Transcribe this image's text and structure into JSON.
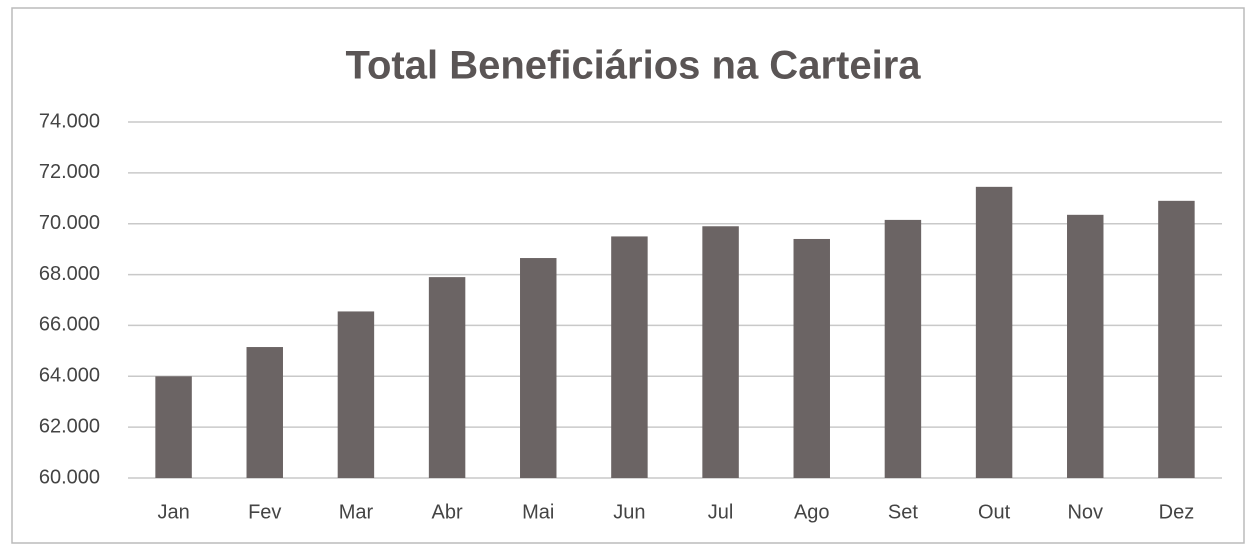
{
  "chart_data": {
    "type": "bar",
    "title": "Total Beneficiários na Carteira",
    "categories": [
      "Jan",
      "Fev",
      "Mar",
      "Abr",
      "Mai",
      "Jun",
      "Jul",
      "Ago",
      "Set",
      "Out",
      "Nov",
      "Dez"
    ],
    "values": [
      64000,
      65150,
      66550,
      67900,
      68650,
      69500,
      69900,
      69400,
      70150,
      71450,
      70350,
      70900
    ],
    "color": "#6b6464",
    "ylim": [
      60000,
      74000
    ],
    "yticks": [
      {
        "value": 60000,
        "label": "60.000"
      },
      {
        "value": 62000,
        "label": "62.000"
      },
      {
        "value": 64000,
        "label": "64.000"
      },
      {
        "value": 66000,
        "label": "66.000"
      },
      {
        "value": 68000,
        "label": "68.000"
      },
      {
        "value": 70000,
        "label": "70.000"
      },
      {
        "value": 72000,
        "label": "72.000"
      },
      {
        "value": 74000,
        "label": "74.000"
      }
    ],
    "grid": true
  }
}
